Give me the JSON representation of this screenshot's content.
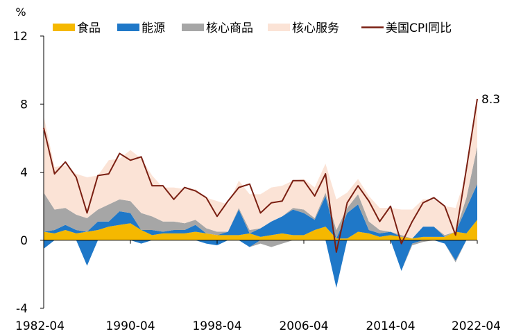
{
  "chart_data": {
    "type": "area",
    "unit_label": "%",
    "x": [
      "1982-04",
      "1983-04",
      "1984-04",
      "1985-04",
      "1986-04",
      "1987-04",
      "1988-04",
      "1989-04",
      "1990-04",
      "1991-04",
      "1992-04",
      "1993-04",
      "1994-04",
      "1995-04",
      "1996-04",
      "1997-04",
      "1998-04",
      "1999-04",
      "2000-04",
      "2001-04",
      "2002-04",
      "2003-04",
      "2004-04",
      "2005-04",
      "2006-04",
      "2007-04",
      "2008-04",
      "2009-04",
      "2010-04",
      "2011-04",
      "2012-04",
      "2013-04",
      "2014-04",
      "2015-04",
      "2016-04",
      "2017-04",
      "2018-04",
      "2019-04",
      "2020-04",
      "2021-04",
      "2022-04"
    ],
    "x_tick_labels": [
      "1982-04",
      "1990-04",
      "1998-04",
      "2006-04",
      "2014-04",
      "2022-04"
    ],
    "ylim": [
      -4,
      12
    ],
    "y_ticks": [
      -4,
      0,
      4,
      8,
      12
    ],
    "stacking": "stacked (positive and negative parts stacked separately)",
    "series": [
      {
        "name": "食品",
        "kind": "area",
        "color": "#F5B800",
        "values": [
          0.5,
          0.4,
          0.6,
          0.4,
          0.5,
          0.6,
          0.8,
          0.9,
          1.0,
          0.6,
          0.3,
          0.4,
          0.4,
          0.4,
          0.5,
          0.4,
          0.3,
          0.3,
          0.3,
          0.4,
          0.2,
          0.3,
          0.4,
          0.3,
          0.3,
          0.6,
          0.8,
          0.1,
          0.1,
          0.5,
          0.4,
          0.2,
          0.3,
          0.2,
          0.1,
          0.2,
          0.2,
          0.2,
          0.5,
          0.4,
          1.2
        ]
      },
      {
        "name": "能源",
        "kind": "area",
        "color": "#1F78C8",
        "values": [
          -0.5,
          0.2,
          0.3,
          0.2,
          -1.5,
          0.5,
          0.3,
          0.8,
          0.6,
          -0.2,
          0.3,
          0.1,
          0.2,
          0.2,
          0.4,
          -0.2,
          -0.3,
          0.2,
          1.5,
          -0.4,
          0.5,
          0.8,
          1.0,
          1.5,
          1.3,
          0.6,
          1.8,
          -2.8,
          1.5,
          1.6,
          0.2,
          0.2,
          0.2,
          -1.8,
          -0.2,
          0.6,
          0.6,
          -0.2,
          -1.2,
          1.5,
          2.1
        ]
      },
      {
        "name": "核心商品",
        "kind": "area",
        "color": "#A6A6A6",
        "values": [
          2.3,
          1.2,
          1.0,
          0.9,
          0.8,
          0.7,
          1.0,
          0.7,
          0.7,
          1.0,
          0.8,
          0.6,
          0.5,
          0.4,
          0.3,
          0.3,
          0.2,
          0.0,
          0.1,
          0.2,
          -0.2,
          -0.4,
          -0.2,
          0.1,
          0.2,
          0.1,
          0.2,
          0.5,
          0.3,
          0.6,
          0.5,
          0.2,
          0.0,
          0.1,
          -0.1,
          -0.1,
          0.0,
          0.1,
          -0.1,
          0.6,
          2.2
        ]
      },
      {
        "name": "核心服务",
        "kind": "area",
        "color": "#FBE3D6",
        "values": [
          4.5,
          2.5,
          2.5,
          2.4,
          2.4,
          2.0,
          2.6,
          2.4,
          3.0,
          3.2,
          2.4,
          2.0,
          2.0,
          2.0,
          1.8,
          1.8,
          1.8,
          1.6,
          1.6,
          2.1,
          2.0,
          2.0,
          1.8,
          1.6,
          1.8,
          1.8,
          1.7,
          1.8,
          0.9,
          0.9,
          1.5,
          1.3,
          1.4,
          1.5,
          1.7,
          1.6,
          1.6,
          1.7,
          1.4,
          1.4,
          2.8
        ]
      },
      {
        "name": "美国CPI同比",
        "kind": "line",
        "color": "#7A1F12",
        "values": [
          6.6,
          3.9,
          4.6,
          3.7,
          1.6,
          3.8,
          3.9,
          5.1,
          4.7,
          4.9,
          3.2,
          3.2,
          2.4,
          3.1,
          2.9,
          2.5,
          1.4,
          2.3,
          3.1,
          3.3,
          1.6,
          2.2,
          2.3,
          3.5,
          3.5,
          2.6,
          3.9,
          -0.7,
          2.2,
          3.2,
          2.3,
          1.1,
          2.0,
          -0.2,
          1.1,
          2.2,
          2.5,
          2.0,
          0.3,
          4.2,
          8.3
        ]
      }
    ],
    "annotations": [
      {
        "text": "8.3",
        "series": "美国CPI同比",
        "x": "2022-04"
      }
    ],
    "grid": false,
    "legend_position": "top"
  }
}
